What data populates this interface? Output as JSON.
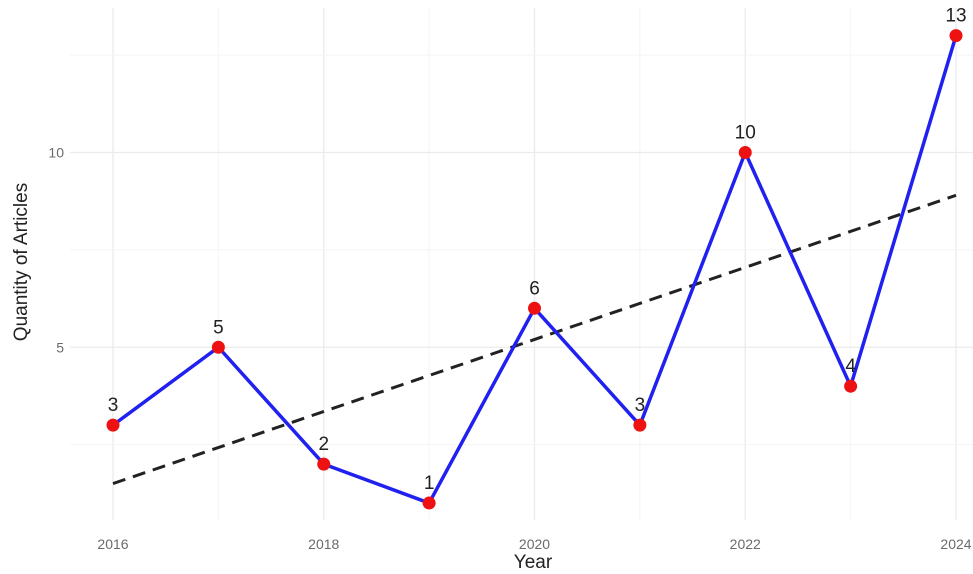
{
  "chart_data": {
    "type": "line",
    "title": "",
    "xlabel": "Year",
    "ylabel": "Quantity of Articles",
    "x": [
      2016,
      2017,
      2018,
      2019,
      2020,
      2021,
      2022,
      2023,
      2024
    ],
    "series": [
      {
        "values": [
          3,
          5,
          2,
          1,
          6,
          3,
          10,
          4,
          13
        ],
        "color": "#2020f0",
        "marker_color": "#ee1111"
      }
    ],
    "trend": {
      "style": "dashed",
      "color": "#222222",
      "start": 1.5,
      "end": 8.9
    },
    "x_ticks": [
      "2016",
      "2018",
      "2020",
      "2022",
      "2024"
    ],
    "y_ticks": [
      "5",
      "10"
    ],
    "xlim": [
      2016,
      2024
    ],
    "ylim": [
      0,
      13.6
    ],
    "grid": true,
    "legend": "none"
  }
}
